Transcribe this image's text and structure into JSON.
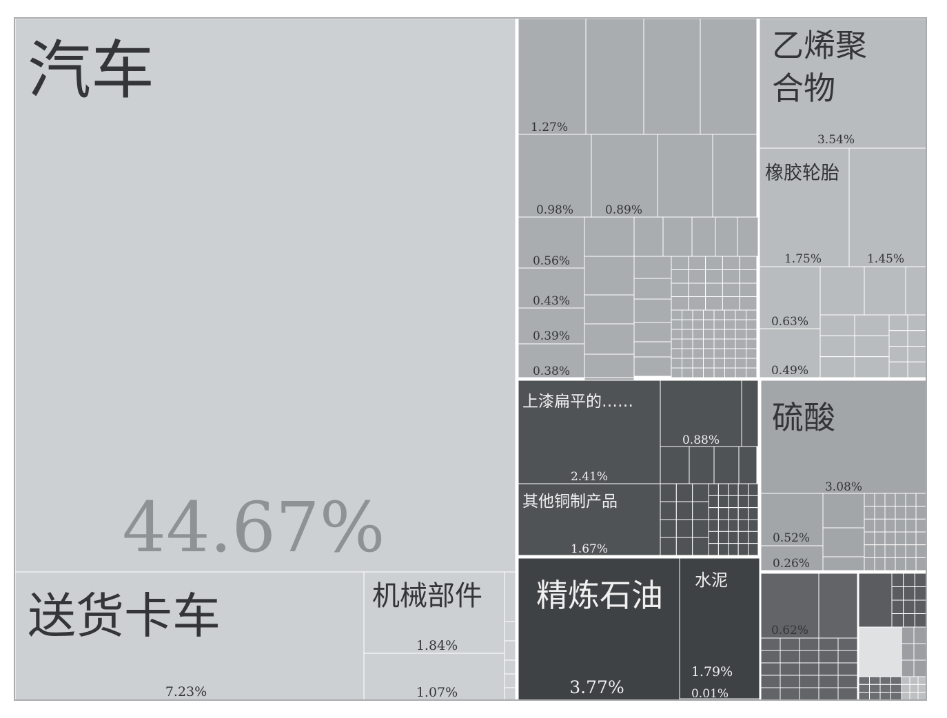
{
  "chart_data": {
    "type": "treemap",
    "unit": "%",
    "groups": [
      {
        "name": "vehicles",
        "color": "#cdd0d3",
        "items": [
          {
            "label": "汽车",
            "value_text": "44.67%",
            "value": 44.67
          },
          {
            "label": "送货卡车",
            "value_text": "7.23%",
            "value": 7.23
          },
          {
            "label": "机械部件",
            "value_text": "1.84%",
            "value": 1.84
          },
          {
            "label": "",
            "value_text": "1.07%",
            "value": 1.07
          }
        ]
      },
      {
        "name": "machinery",
        "color": "#aaadaf",
        "items": [
          {
            "value_text": "1.27%",
            "value": 1.27
          },
          {
            "value_text": "0.98%",
            "value": 0.98
          },
          {
            "value_text": "0.89%",
            "value": 0.89
          },
          {
            "value_text": "0.56%",
            "value": 0.56
          },
          {
            "value_text": "0.43%",
            "value": 0.43
          },
          {
            "value_text": "0.39%",
            "value": 0.39
          },
          {
            "value_text": "0.38%",
            "value": 0.38
          }
        ]
      },
      {
        "name": "plastics-rubber",
        "color": "#b9bcbe",
        "items": [
          {
            "label": "乙烯聚合物",
            "value_text": "3.54%",
            "value": 3.54
          },
          {
            "label": "橡胶轮胎",
            "value_text": "1.75%",
            "value": 1.75
          },
          {
            "value_text": "1.45%",
            "value": 1.45
          },
          {
            "value_text": "0.63%",
            "value": 0.63
          },
          {
            "value_text": "0.49%",
            "value": 0.49
          }
        ]
      },
      {
        "name": "metals",
        "color": "#505356",
        "items": [
          {
            "label": "上漆扁平的……",
            "value_text": "2.41%",
            "value": 2.41
          },
          {
            "value_text": "0.88%",
            "value": 0.88
          },
          {
            "label": "其他铜制产品",
            "value_text": "1.67%",
            "value": 1.67
          }
        ]
      },
      {
        "name": "chemicals",
        "color": "#a3a6a8",
        "items": [
          {
            "label": "硫酸",
            "value_text": "3.08%",
            "value": 3.08
          },
          {
            "value_text": "0.52%",
            "value": 0.52
          },
          {
            "value_text": "0.26%",
            "value": 0.26
          }
        ]
      },
      {
        "name": "mineral-products",
        "color": "#3f4244",
        "items": [
          {
            "label": "精炼石油",
            "value_text": "3.77%",
            "value": 3.77
          },
          {
            "label": "水泥",
            "value_text": "1.79%",
            "value": 1.79
          },
          {
            "value_text": "0.01%",
            "value": 0.01
          }
        ]
      },
      {
        "name": "other",
        "color": "#636467",
        "items": [
          {
            "value_text": "0.62%",
            "value": 0.62
          }
        ]
      }
    ]
  }
}
